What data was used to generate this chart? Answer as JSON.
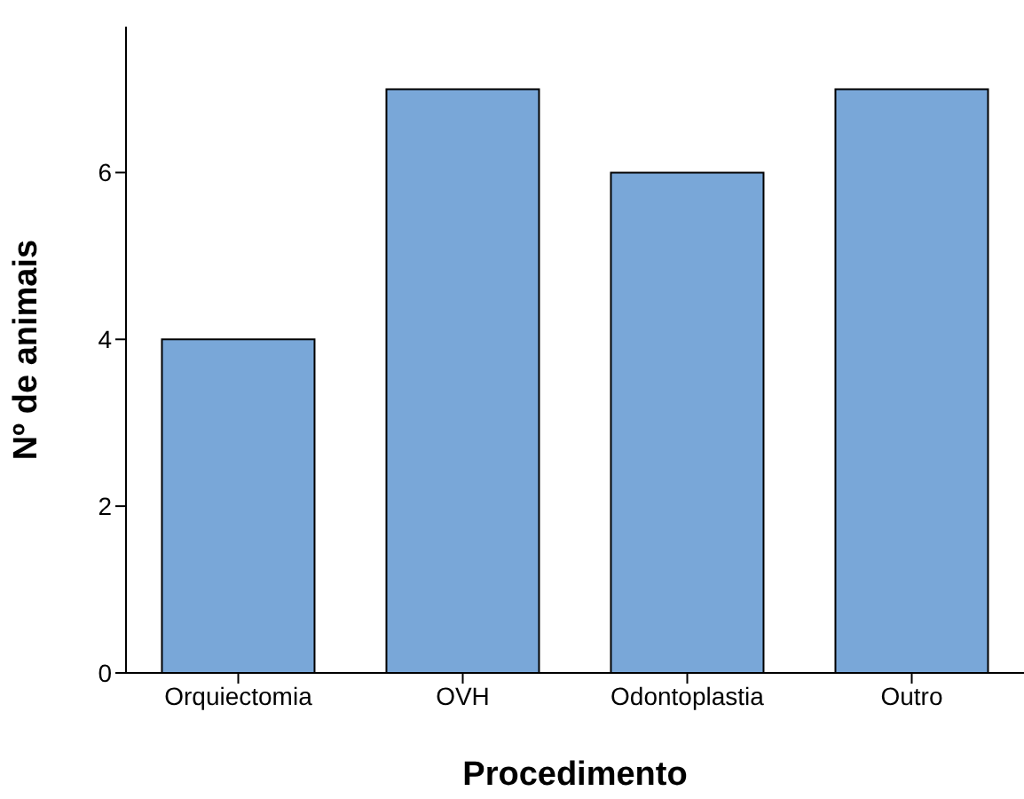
{
  "chart_data": {
    "type": "bar",
    "xlabel": "Procedimento",
    "ylabel": "Nº de animais",
    "categories": [
      "Orquiectomia",
      "OVH",
      "Odontoplastia",
      "Outro"
    ],
    "values": [
      4,
      7,
      6,
      7
    ],
    "color": "#79a7d8",
    "ylim": [
      0,
      7.75
    ],
    "yticks": [
      0,
      2,
      4,
      6
    ],
    "grid": false
  }
}
